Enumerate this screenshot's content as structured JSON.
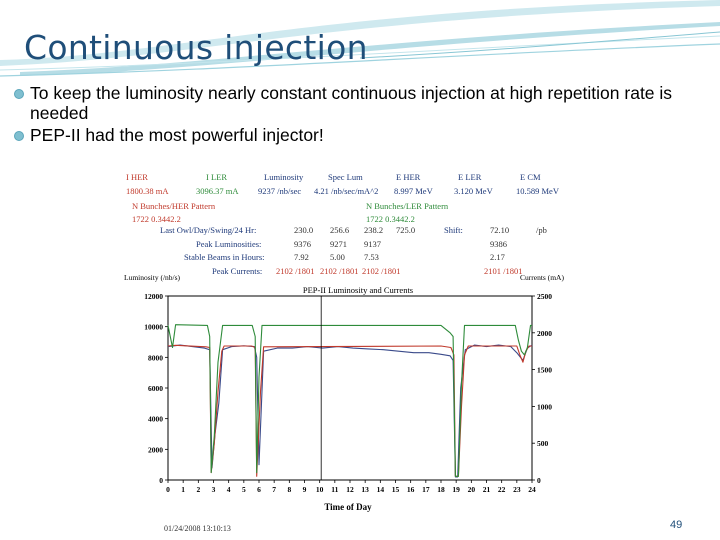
{
  "slide": {
    "title": "Continuous injection",
    "bullets": [
      "To keep the luminosity nearly constant continuous injection at high repetition rate is needed",
      "PEP-II had the most powerful injector!"
    ],
    "page_number": "49"
  },
  "colors": {
    "title": "#1f4e79",
    "bullet": "#7fbfd0",
    "wave": "#9fd3df",
    "luminosity": "#3a4a8a",
    "her": "#c0392b",
    "ler": "#2e8b3a"
  },
  "header_table": {
    "labels": [
      "I HER",
      "I LER",
      "Luminosity",
      "Spec Lum",
      "E HER",
      "E LER",
      "E CM"
    ],
    "values": [
      "1800.38 mA",
      "3096.37 mA",
      "9237 /nb/sec",
      "4.21 /nb/sec/mA^2",
      "8.997 MeV",
      "3.120 MeV",
      "10.589 MeV"
    ],
    "her_pattern_label": "N Bunches/HER Pattern",
    "her_pattern_value": "1722   0.3442.2",
    "ler_pattern_label": "N Bunches/LER Pattern",
    "ler_pattern_value": "1722   0.3442.2",
    "rows": [
      {
        "label": "Last Owl/Day/Swing/24 Hr:",
        "values": [
          "230.0",
          "256.6",
          "238.2",
          "725.0"
        ],
        "extra_label": "Shift:",
        "extra_value": "72.10",
        "unit": "/pb"
      },
      {
        "label": "Peak Luminosities:",
        "values": [
          "9376",
          "9271",
          "9137"
        ],
        "extra_value": "9386"
      },
      {
        "label": "Stable Beams in Hours:",
        "values": [
          "7.92",
          "5.00",
          "7.53"
        ],
        "extra_value": "2.17"
      },
      {
        "label": "Peak Currents:",
        "values": [
          "2102 /1801",
          "2102 /1801",
          "2102 /1801"
        ],
        "extra_value": "2101 /1801"
      }
    ]
  },
  "chart_data": {
    "type": "line",
    "title": "PEP-II Luminosity and Currents",
    "xlabel": "Time of Day",
    "ylabel_left": "Luminosity (/nb/s)",
    "ylabel_right": "Currents (mA)",
    "timestamp": "01/24/2008 13:10:13",
    "xlim": [
      0,
      24
    ],
    "ylim_left": [
      0,
      12000
    ],
    "ylim_right": [
      0,
      2500
    ],
    "x_ticks": [
      0,
      1,
      2,
      3,
      4,
      5,
      6,
      7,
      8,
      9,
      10,
      11,
      12,
      13,
      14,
      15,
      16,
      17,
      18,
      19,
      20,
      21,
      22,
      23,
      24
    ],
    "y_ticks_left": [
      0,
      2000,
      4000,
      6000,
      8000,
      10000,
      12000
    ],
    "y_ticks_right": [
      0,
      500,
      1000,
      1500,
      2000,
      2500
    ],
    "grid": false,
    "series": [
      {
        "axis": "left",
        "color": "#3a4a8a",
        "x": [
          0,
          0.8,
          1.6,
          2.4,
          2.75,
          2.9,
          3.1,
          3.35,
          3.6,
          4.2,
          5.0,
          5.7,
          5.85,
          6.0,
          6.3,
          7.2,
          8.2,
          9.2,
          10.2,
          11.2,
          12.2,
          13.2,
          14.2,
          15.2,
          16.2,
          17.2,
          18.0,
          18.6,
          18.8,
          18.95,
          19.1,
          19.3,
          19.6,
          20.2,
          21.0,
          21.8,
          22.6,
          23.0,
          23.4,
          23.7,
          24
        ],
        "y": [
          8700,
          8800,
          8700,
          8600,
          8500,
          800,
          3000,
          5000,
          8500,
          8700,
          8750,
          8700,
          8000,
          1000,
          8400,
          8600,
          8600,
          8700,
          8600,
          8700,
          8600,
          8550,
          8500,
          8400,
          8300,
          8300,
          8200,
          8100,
          7800,
          200,
          200,
          6000,
          8500,
          8800,
          8700,
          8800,
          8700,
          8300,
          7800,
          8600,
          8800
        ]
      },
      {
        "axis": "right",
        "color": "#c0392b",
        "x": [
          0,
          0.5,
          2.5,
          2.75,
          2.85,
          3.05,
          3.3,
          3.55,
          3.7,
          5.5,
          5.75,
          5.85,
          6.1,
          6.3,
          18.0,
          18.65,
          18.85,
          18.95,
          19.15,
          19.35,
          19.55,
          19.8,
          23.0,
          23.2,
          23.4,
          23.6,
          23.8,
          24
        ],
        "y": [
          1820,
          1830,
          1810,
          1800,
          100,
          500,
          1200,
          1750,
          1820,
          1820,
          1800,
          50,
          1200,
          1810,
          1820,
          1800,
          1700,
          50,
          50,
          1000,
          1700,
          1820,
          1820,
          1700,
          1600,
          1750,
          1820,
          1820
        ]
      },
      {
        "axis": "right",
        "color": "#2e8b3a",
        "x": [
          0,
          0.3,
          0.5,
          2.6,
          2.75,
          2.85,
          3.05,
          3.3,
          3.6,
          5.55,
          5.75,
          5.85,
          6.0,
          6.2,
          18.0,
          18.6,
          18.8,
          18.95,
          19.15,
          19.35,
          19.55,
          20.0,
          22.9,
          23.1,
          23.3,
          23.5,
          23.7,
          23.9,
          24
        ],
        "y": [
          2100,
          1800,
          2110,
          2100,
          1950,
          100,
          600,
          1600,
          2100,
          2100,
          1950,
          100,
          1400,
          2100,
          2100,
          2000,
          1950,
          50,
          50,
          1300,
          2100,
          2100,
          2100,
          1900,
          1750,
          1700,
          1800,
          2100,
          2100
        ]
      }
    ],
    "cursor_x": 10.1
  }
}
